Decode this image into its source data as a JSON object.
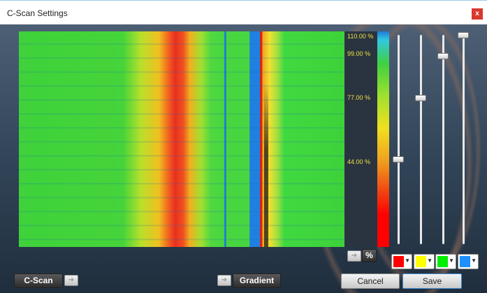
{
  "window": {
    "title": "C-Scan Settings",
    "close": "x"
  },
  "scale": {
    "labels": [
      "110.00 %",
      "99.00 %",
      "77.00 %",
      "44.00 %"
    ]
  },
  "buttons": {
    "percent": "%",
    "cscan": "C-Scan",
    "gradient": "Gradient",
    "cancel": "Cancel",
    "save": "Save"
  }
}
